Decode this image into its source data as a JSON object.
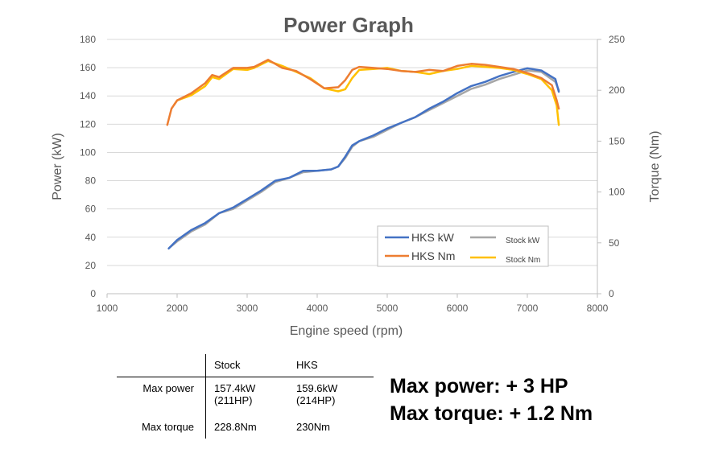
{
  "chart_data": {
    "type": "line",
    "title": "Power Graph",
    "xlabel": "Engine speed (rpm)",
    "ylabel": "Power (kW)",
    "y2label": "Torque (Nm)",
    "xlim": [
      1000,
      8000
    ],
    "ylim": [
      0,
      180
    ],
    "y2lim": [
      0,
      250
    ],
    "xticks": [
      1000,
      2000,
      3000,
      4000,
      5000,
      6000,
      7000,
      8000
    ],
    "yticks": [
      0,
      20,
      40,
      60,
      80,
      100,
      120,
      140,
      160,
      180
    ],
    "y2ticks": [
      0,
      50,
      100,
      150,
      200,
      250
    ],
    "grid": true,
    "legend_position": "inside-bottom-right",
    "series": [
      {
        "name": "Stock kW",
        "axis": "left",
        "color": "#a6a6a6",
        "x": [
          1900,
          2000,
          2200,
          2400,
          2600,
          2800,
          3000,
          3200,
          3400,
          3600,
          3800,
          4000,
          4200,
          4300,
          4400,
          4500,
          4600,
          4800,
          5000,
          5200,
          5400,
          5600,
          5800,
          6000,
          6200,
          6400,
          6600,
          6800,
          7000,
          7200,
          7400,
          7450
        ],
        "y": [
          33,
          37,
          44,
          49,
          57,
          60,
          66,
          72,
          79,
          82,
          86,
          87,
          88,
          90,
          96,
          104,
          108,
          111,
          116,
          121,
          125,
          130,
          135,
          140,
          145,
          148,
          152,
          155,
          158,
          157,
          150,
          144
        ]
      },
      {
        "name": "HKS kW",
        "axis": "left",
        "color": "#4472c4",
        "x": [
          1880,
          2000,
          2200,
          2400,
          2600,
          2800,
          3000,
          3200,
          3400,
          3600,
          3800,
          4000,
          4200,
          4300,
          4400,
          4500,
          4600,
          4800,
          5000,
          5200,
          5400,
          5600,
          5800,
          6000,
          6200,
          6400,
          6600,
          6800,
          7000,
          7200,
          7400,
          7450
        ],
        "y": [
          32,
          38,
          45,
          50,
          57,
          61,
          67,
          73,
          80,
          82,
          87,
          87,
          88,
          90,
          97,
          105,
          108,
          112,
          117,
          121,
          125,
          131,
          136,
          142,
          147,
          150,
          154,
          157,
          159.6,
          158,
          152,
          143
        ]
      },
      {
        "name": "Stock Nm",
        "axis": "right",
        "color": "#ffc000",
        "x": [
          1960,
          2000,
          2200,
          2400,
          2500,
          2600,
          2800,
          3000,
          3100,
          3300,
          3500,
          3700,
          3900,
          4100,
          4300,
          4400,
          4500,
          4600,
          4800,
          5000,
          5200,
          5400,
          5600,
          5800,
          6000,
          6200,
          6400,
          6600,
          6800,
          7000,
          7200,
          7350,
          7420,
          7450
        ],
        "y": [
          186,
          190,
          195,
          204,
          213,
          211,
          221,
          220,
          222,
          228.8,
          224,
          218,
          212,
          202,
          199,
          201,
          212,
          220,
          221,
          222,
          219,
          218,
          216,
          219,
          221,
          224,
          223,
          222,
          220,
          216,
          211,
          200,
          185,
          166
        ]
      },
      {
        "name": "HKS Nm",
        "axis": "right",
        "color": "#ed7d31",
        "x": [
          1860,
          1920,
          2000,
          2200,
          2400,
          2500,
          2600,
          2800,
          3000,
          3100,
          3300,
          3500,
          3700,
          3900,
          4100,
          4300,
          4400,
          4500,
          4600,
          4800,
          5000,
          5200,
          5400,
          5600,
          5800,
          6000,
          6200,
          6400,
          6600,
          6800,
          7000,
          7200,
          7350,
          7420,
          7450
        ],
        "y": [
          166,
          182,
          190,
          197,
          207,
          215,
          213,
          222,
          222,
          223,
          230,
          222,
          219,
          211,
          202,
          203,
          210,
          220,
          223,
          222,
          221,
          219,
          218,
          220,
          219,
          224,
          226,
          225,
          223,
          221,
          217,
          212,
          205,
          190,
          182
        ]
      }
    ]
  },
  "legend": {
    "hks_kw": "HKS kW",
    "stock_kw": "Stock kW",
    "hks_nm": "HKS Nm",
    "stock_nm": "Stock Nm"
  },
  "table": {
    "headers": [
      "",
      "Stock",
      "HKS"
    ],
    "rows": [
      {
        "label": "Max power",
        "stock": [
          "157.4kW",
          "(211HP)"
        ],
        "hks": [
          "159.6kW",
          "(214HP)"
        ]
      },
      {
        "label": "Max torque",
        "stock": [
          "228.8Nm"
        ],
        "hks": [
          "230Nm"
        ]
      }
    ]
  },
  "summary": {
    "power_gain": "Max power: + 3 HP",
    "torque_gain": "Max torque: + 1.2 Nm"
  }
}
